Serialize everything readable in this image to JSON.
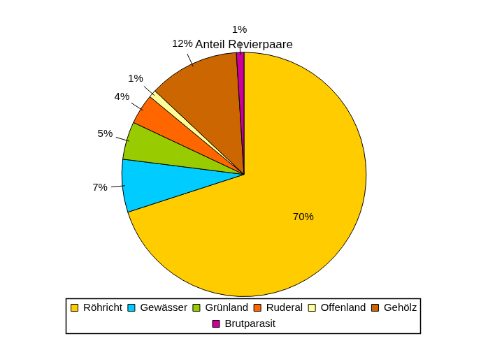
{
  "chart_data": {
    "type": "pie",
    "title": "Anteil Revierpaare",
    "categories": [
      "Röhricht",
      "Gewässer",
      "Grünland",
      "Ruderal",
      "Offenland",
      "Gehölz",
      "Brutparasit"
    ],
    "values": [
      70,
      7,
      5,
      4,
      1,
      12,
      1
    ],
    "value_labels": [
      "70%",
      "7%",
      "5%",
      "4%",
      "1%",
      "12%",
      "1%"
    ],
    "colors": [
      "#FFCC00",
      "#00CCFF",
      "#99CC00",
      "#FF6600",
      "#FFFF99",
      "#CC6600",
      "#CC0099"
    ],
    "data_labels": true,
    "legend": "bottom"
  }
}
